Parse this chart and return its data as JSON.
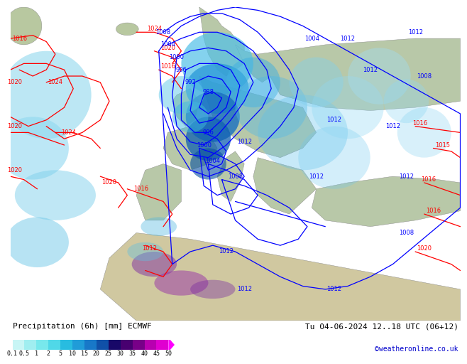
{
  "title_left": "Precipitation (6h) [mm] ECMWF",
  "title_right": "Tu 04-06-2024 12..18 UTC (06+12)",
  "credit": "©weatheronline.co.uk",
  "colorbar_levels": [
    0.1,
    0.5,
    1,
    2,
    5,
    10,
    15,
    20,
    25,
    30,
    35,
    40,
    45,
    50
  ],
  "colorbar_colors": [
    "#c8f5f5",
    "#a0eef0",
    "#78e8ec",
    "#50d8e8",
    "#28bce0",
    "#209cd8",
    "#1878c8",
    "#1050a8",
    "#180868",
    "#480070",
    "#780088",
    "#b800b0",
    "#e000d0",
    "#ff00ff"
  ],
  "map_bg_ocean": "#e8f0f8",
  "map_bg_land_green": "#c8d8b0",
  "map_bg_land_gray": "#c0b8b0",
  "chart_bg": "#ffffff",
  "credit_color": "#0000cc",
  "title_fontsize": 8,
  "credit_fontsize": 7,
  "isobar_fontsize": 6,
  "cb_label_fontsize": 6
}
